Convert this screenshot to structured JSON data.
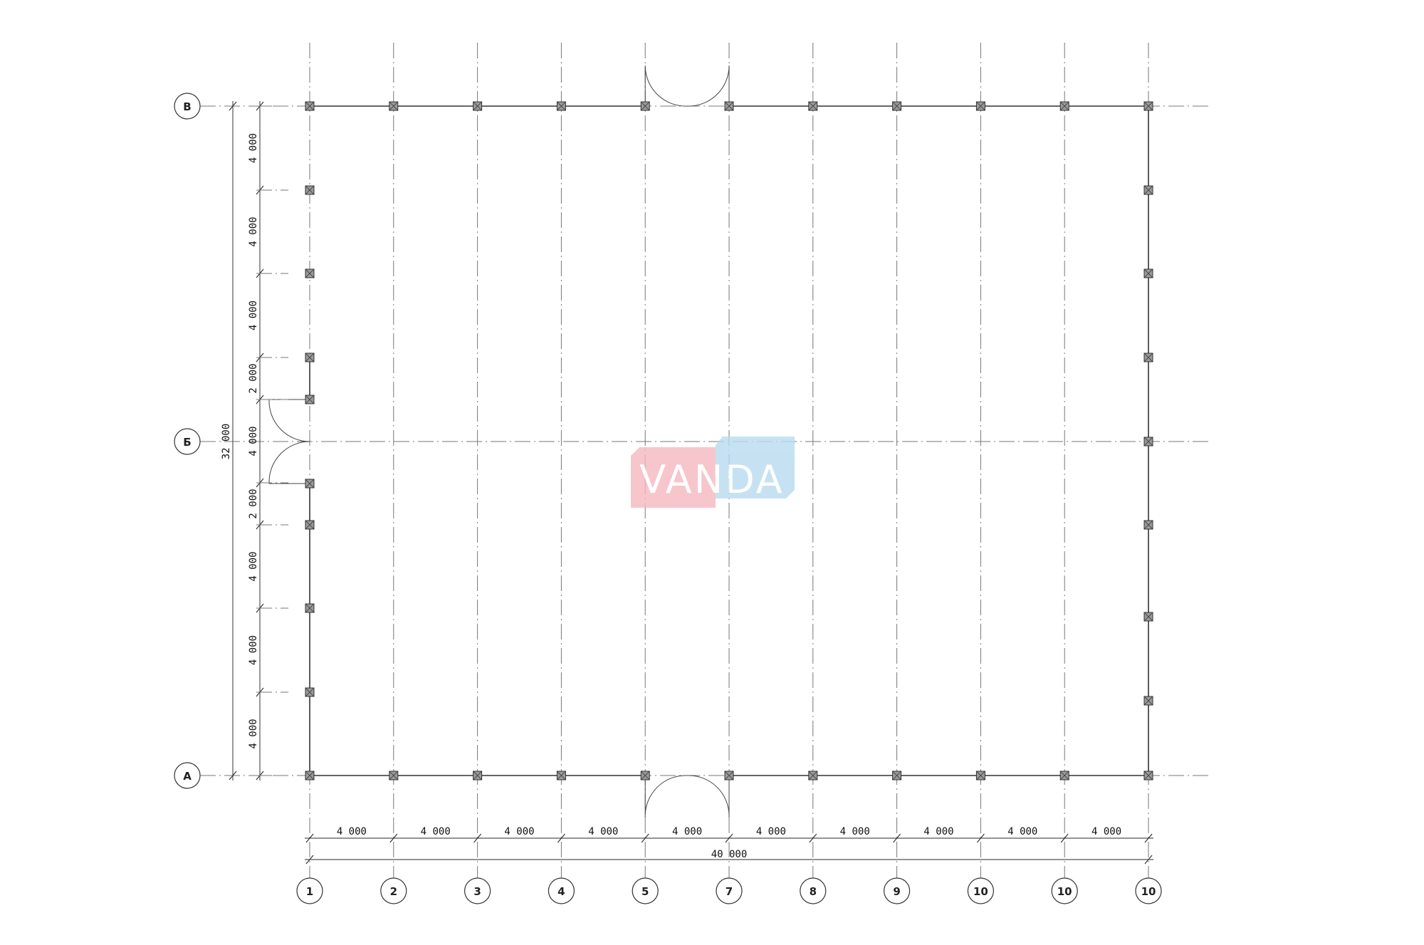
{
  "columns": [
    "1",
    "2",
    "3",
    "4",
    "5",
    "7",
    "8",
    "9",
    "10",
    "10",
    "10"
  ],
  "rows": [
    "В",
    "Б",
    "А"
  ],
  "horizontal_dims": [
    "4 000",
    "4 000",
    "4 000",
    "4 000",
    "4 000",
    "4 000",
    "4 000",
    "4 000",
    "4 000",
    "4 000"
  ],
  "horizontal_total": "40 000",
  "vertical_dims": [
    "4 000",
    "4 000",
    "4 000",
    "2 000",
    "4 000",
    "2 000",
    "4 000",
    "4 000",
    "4 000"
  ],
  "vertical_total": "32 000",
  "logo": {
    "text": "VANDA",
    "colors": {
      "left": "#f4b8c0",
      "right": "#b8dcf0"
    }
  }
}
